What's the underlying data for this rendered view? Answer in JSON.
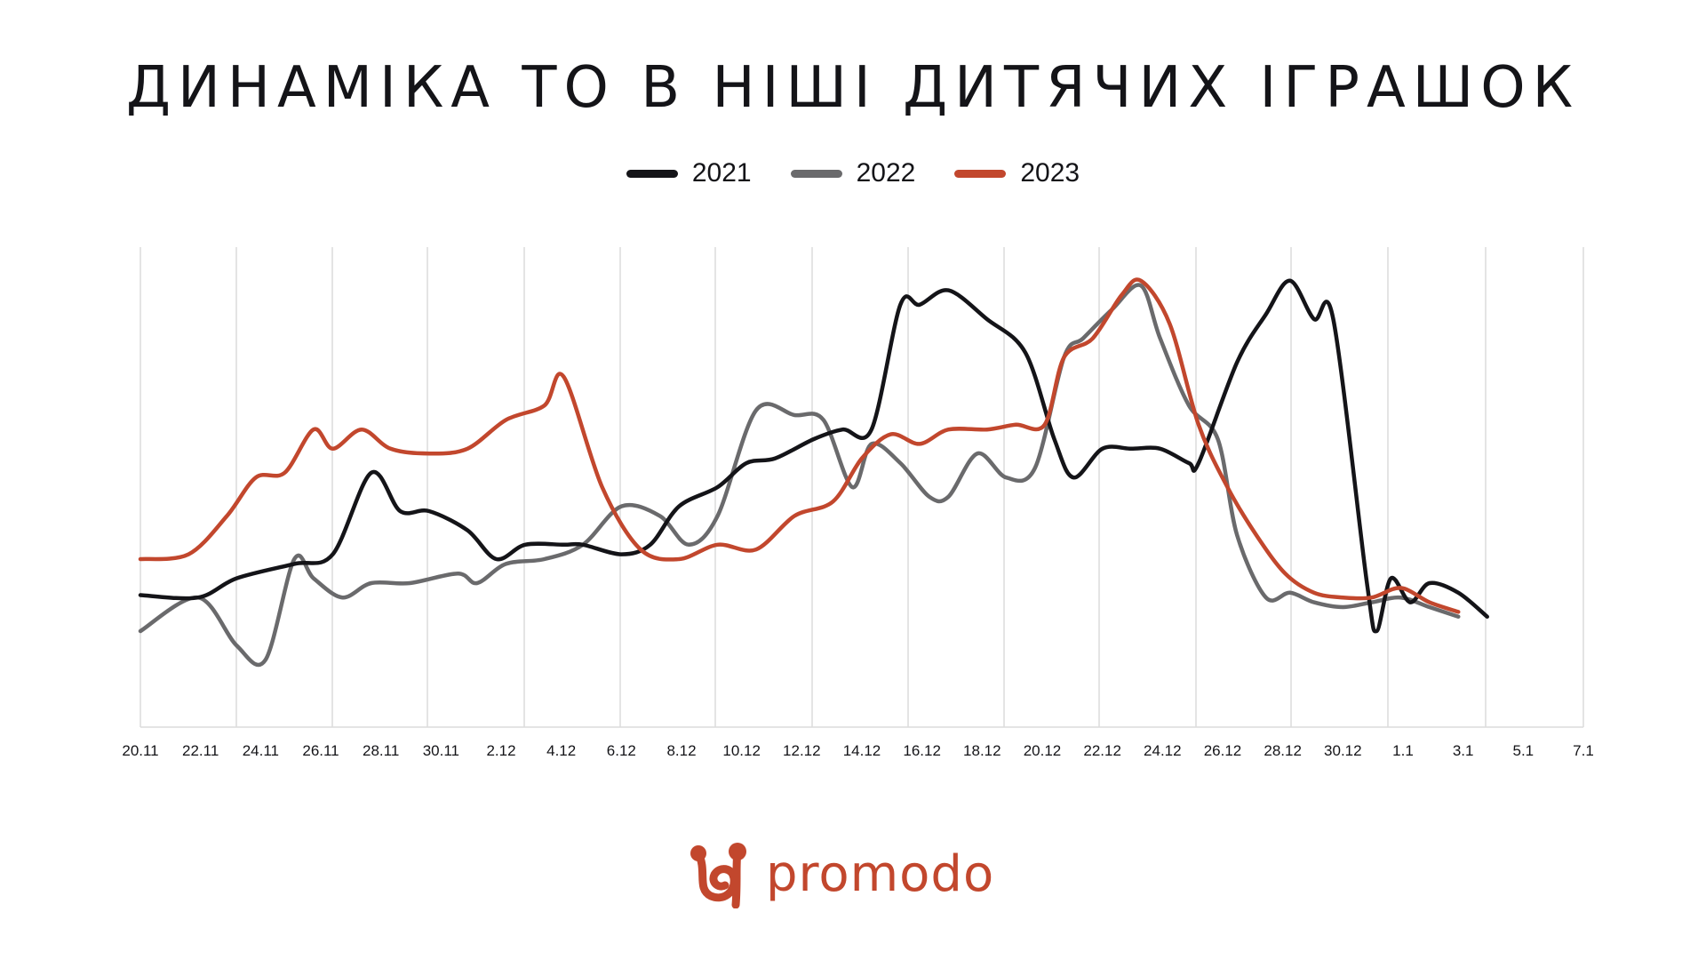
{
  "chart_data": {
    "type": "line",
    "title": "ДИНАМІКА ТО В НІШІ ДИТЯЧИХ ІГРАШОК",
    "xlabel": "",
    "ylabel": "",
    "grid": "vertical",
    "legend": "top-center",
    "x_ticks": [
      "20.11",
      "22.11",
      "24.11",
      "26.11",
      "28.11",
      "30.11",
      "2.12",
      "4.12",
      "6.12",
      "8.12",
      "10.12",
      "12.12",
      "14.12",
      "16.12",
      "18.12",
      "20.12",
      "22.12",
      "24.12",
      "26.12",
      "28.12",
      "30.12",
      "1.1",
      "3.1",
      "5.1",
      "7.1"
    ],
    "ylim": [
      0,
      100
    ],
    "series": [
      {
        "name": "2021",
        "color": "#141418",
        "points": [
          [
            0,
            27.5
          ],
          [
            0.6,
            27
          ],
          [
            1,
            31
          ],
          [
            1.6,
            34
          ],
          [
            2,
            36
          ],
          [
            2.4,
            53
          ],
          [
            2.7,
            45
          ],
          [
            3,
            45
          ],
          [
            3.4,
            41
          ],
          [
            3.7,
            35
          ],
          [
            4,
            38
          ],
          [
            4.4,
            38
          ],
          [
            4.6,
            38
          ],
          [
            5,
            36
          ],
          [
            5.3,
            38
          ],
          [
            5.6,
            46
          ],
          [
            6,
            50
          ],
          [
            6.3,
            55
          ],
          [
            6.6,
            56
          ],
          [
            7,
            60
          ],
          [
            7.3,
            62
          ],
          [
            7.6,
            62
          ],
          [
            7.9,
            88
          ],
          [
            8.1,
            88
          ],
          [
            8.4,
            91
          ],
          [
            8.8,
            85
          ],
          [
            9.2,
            78
          ],
          [
            9.5,
            60
          ],
          [
            9.7,
            52
          ],
          [
            10,
            58
          ],
          [
            10.3,
            58
          ],
          [
            10.6,
            58
          ],
          [
            10.9,
            55
          ],
          [
            11,
            55
          ],
          [
            11.4,
            76
          ],
          [
            11.7,
            86
          ],
          [
            11.95,
            93
          ],
          [
            12.2,
            85
          ],
          [
            12.4,
            85
          ],
          [
            12.75,
            30
          ],
          [
            12.85,
            20
          ],
          [
            13,
            31
          ],
          [
            13.2,
            26
          ],
          [
            13.4,
            30
          ],
          [
            13.7,
            28
          ],
          [
            14,
            23
          ]
        ]
      },
      {
        "name": "2022",
        "color": "#6a6a6c",
        "points": [
          [
            0,
            20
          ],
          [
            0.6,
            27
          ],
          [
            1,
            17
          ],
          [
            1.3,
            14
          ],
          [
            1.6,
            35
          ],
          [
            1.8,
            31
          ],
          [
            2.1,
            27
          ],
          [
            2.4,
            30
          ],
          [
            2.8,
            30
          ],
          [
            3.3,
            32
          ],
          [
            3.5,
            30
          ],
          [
            3.8,
            34
          ],
          [
            4.2,
            35
          ],
          [
            4.6,
            38
          ],
          [
            5,
            46
          ],
          [
            5.4,
            44
          ],
          [
            5.7,
            38
          ],
          [
            6,
            44
          ],
          [
            6.4,
            66
          ],
          [
            6.8,
            65
          ],
          [
            7.1,
            64
          ],
          [
            7.4,
            50
          ],
          [
            7.6,
            59
          ],
          [
            7.9,
            55
          ],
          [
            8.2,
            48
          ],
          [
            8.4,
            48
          ],
          [
            8.7,
            57
          ],
          [
            9,
            52
          ],
          [
            9.3,
            54
          ],
          [
            9.6,
            77
          ],
          [
            9.8,
            81
          ],
          [
            10.1,
            87
          ],
          [
            10.4,
            92
          ],
          [
            10.6,
            81
          ],
          [
            10.9,
            67
          ],
          [
            11.2,
            60
          ],
          [
            11.4,
            40
          ],
          [
            11.7,
            27
          ],
          [
            11.95,
            28
          ],
          [
            12.2,
            26
          ],
          [
            12.5,
            25
          ],
          [
            12.8,
            26
          ],
          [
            13.1,
            27
          ],
          [
            13.4,
            25
          ],
          [
            13.7,
            23
          ]
        ]
      },
      {
        "name": "2023",
        "color": "#c2472d",
        "points": [
          [
            0,
            35
          ],
          [
            0.5,
            36
          ],
          [
            0.9,
            44
          ],
          [
            1.2,
            52
          ],
          [
            1.5,
            53
          ],
          [
            1.8,
            62
          ],
          [
            2,
            58
          ],
          [
            2.3,
            62
          ],
          [
            2.6,
            58
          ],
          [
            3,
            57
          ],
          [
            3.4,
            58
          ],
          [
            3.8,
            64
          ],
          [
            4.2,
            67
          ],
          [
            4.4,
            73
          ],
          [
            4.8,
            50
          ],
          [
            5.2,
            37
          ],
          [
            5.6,
            35
          ],
          [
            6,
            38
          ],
          [
            6.4,
            37
          ],
          [
            6.8,
            44
          ],
          [
            7.2,
            47
          ],
          [
            7.5,
            56
          ],
          [
            7.8,
            61
          ],
          [
            8.1,
            59
          ],
          [
            8.4,
            62
          ],
          [
            8.8,
            62
          ],
          [
            9.1,
            63
          ],
          [
            9.4,
            63
          ],
          [
            9.6,
            77
          ],
          [
            9.9,
            81
          ],
          [
            10.2,
            90
          ],
          [
            10.4,
            93
          ],
          [
            10.7,
            84
          ],
          [
            11,
            63
          ],
          [
            11.3,
            50
          ],
          [
            11.6,
            40
          ],
          [
            11.9,
            32
          ],
          [
            12.2,
            28
          ],
          [
            12.5,
            27
          ],
          [
            12.8,
            27
          ],
          [
            13.1,
            29
          ],
          [
            13.4,
            26
          ],
          [
            13.7,
            24
          ]
        ]
      }
    ]
  },
  "legend": {
    "items": [
      {
        "label": "2021",
        "color": "#141418"
      },
      {
        "label": "2022",
        "color": "#6a6a6c"
      },
      {
        "label": "2023",
        "color": "#c2472d"
      }
    ]
  },
  "brand": {
    "name": "promodo",
    "color": "#c2472d"
  }
}
